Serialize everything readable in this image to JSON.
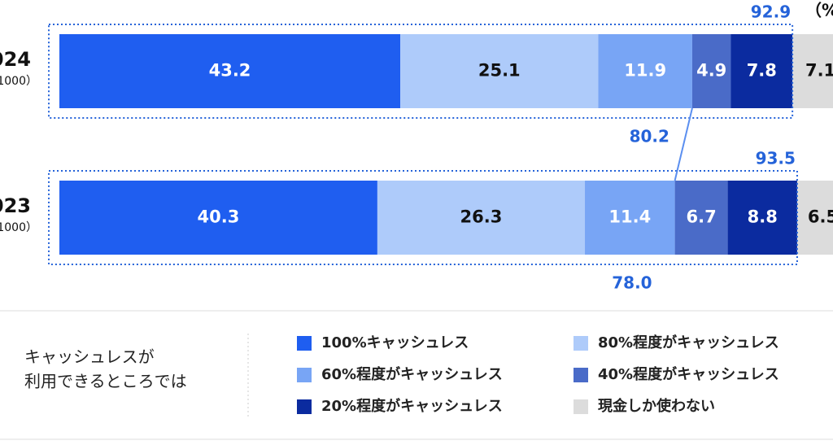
{
  "chart_data": {
    "type": "stacked-bar-horizontal",
    "unit": "（%",
    "categories": [
      "024",
      "023"
    ],
    "category_notes": [
      "1000）",
      "1000）"
    ],
    "xlim": [
      0,
      100
    ],
    "series": [
      {
        "name": "100%キャッシュレス",
        "color": "#1f5ef0",
        "text_color": "#ffffff",
        "values": [
          43.2,
          40.3
        ]
      },
      {
        "name": "80%程度がキャッシュレス",
        "color": "#aecbfa",
        "text_color": "#111111",
        "values": [
          25.1,
          26.3
        ]
      },
      {
        "name": "60%程度がキャッシュレス",
        "color": "#78a5f5",
        "text_color": "#ffffff",
        "values": [
          11.9,
          11.4
        ]
      },
      {
        "name": "40%程度がキャッシュレス",
        "color": "#4a6bc8",
        "text_color": "#ffffff",
        "values": [
          4.9,
          6.7
        ]
      },
      {
        "name": "20%程度がキャッシュレス",
        "color": "#0b2b9f",
        "text_color": "#ffffff",
        "values": [
          7.8,
          8.8
        ]
      },
      {
        "name": "現金しか使わない",
        "color": "#dcdcdc",
        "text_color": "#111111",
        "values": [
          7.1,
          6.5
        ]
      }
    ],
    "bar_annotations": [
      {
        "upper": 92.9,
        "lower": 80.2
      },
      {
        "upper": 93.5,
        "lower": {
          "value": 78.0,
          "label": "78.0"
        }
      }
    ],
    "annotation_color": "#2563d9",
    "legend_title": [
      "キャッシュレスが",
      "利用できるところでは"
    ]
  }
}
